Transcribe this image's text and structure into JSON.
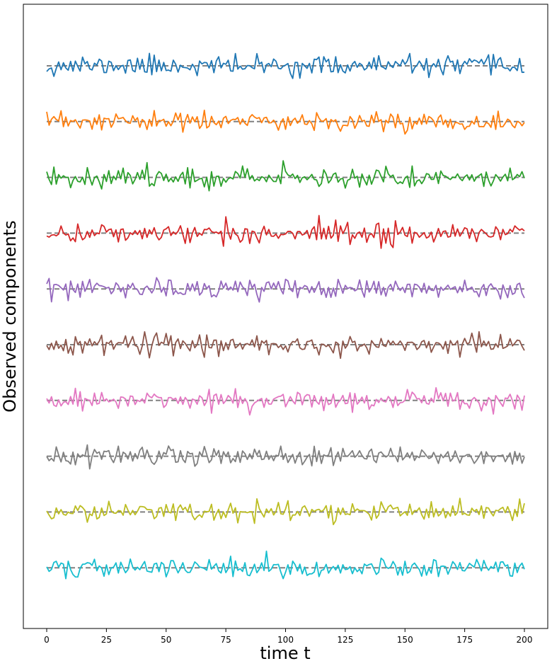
{
  "chart_data": {
    "type": "line",
    "xlabel": "time t",
    "ylabel": "Observed components",
    "xlim": [
      -9,
      201
    ],
    "xticks": [
      0,
      25,
      50,
      75,
      100,
      125,
      150,
      175,
      200
    ],
    "grid": false,
    "legend": "none",
    "baseline_style": "dashed",
    "baseline_color": "#808080",
    "n_points": 201,
    "series": [
      {
        "color": "#1f77b4",
        "offset": 0,
        "seed": 11
      },
      {
        "color": "#ff7f0e",
        "offset": 1,
        "seed": 23
      },
      {
        "color": "#2ca02c",
        "offset": 2,
        "seed": 37
      },
      {
        "color": "#d62728",
        "offset": 3,
        "seed": 41
      },
      {
        "color": "#9467bd",
        "offset": 4,
        "seed": 53
      },
      {
        "color": "#8c564b",
        "offset": 5,
        "seed": 67
      },
      {
        "color": "#e377c2",
        "offset": 6,
        "seed": 71
      },
      {
        "color": "#7f7f7f",
        "offset": 7,
        "seed": 83
      },
      {
        "color": "#bcbd22",
        "offset": 8,
        "seed": 97
      },
      {
        "color": "#17becf",
        "offset": 9,
        "seed": 101
      }
    ]
  }
}
